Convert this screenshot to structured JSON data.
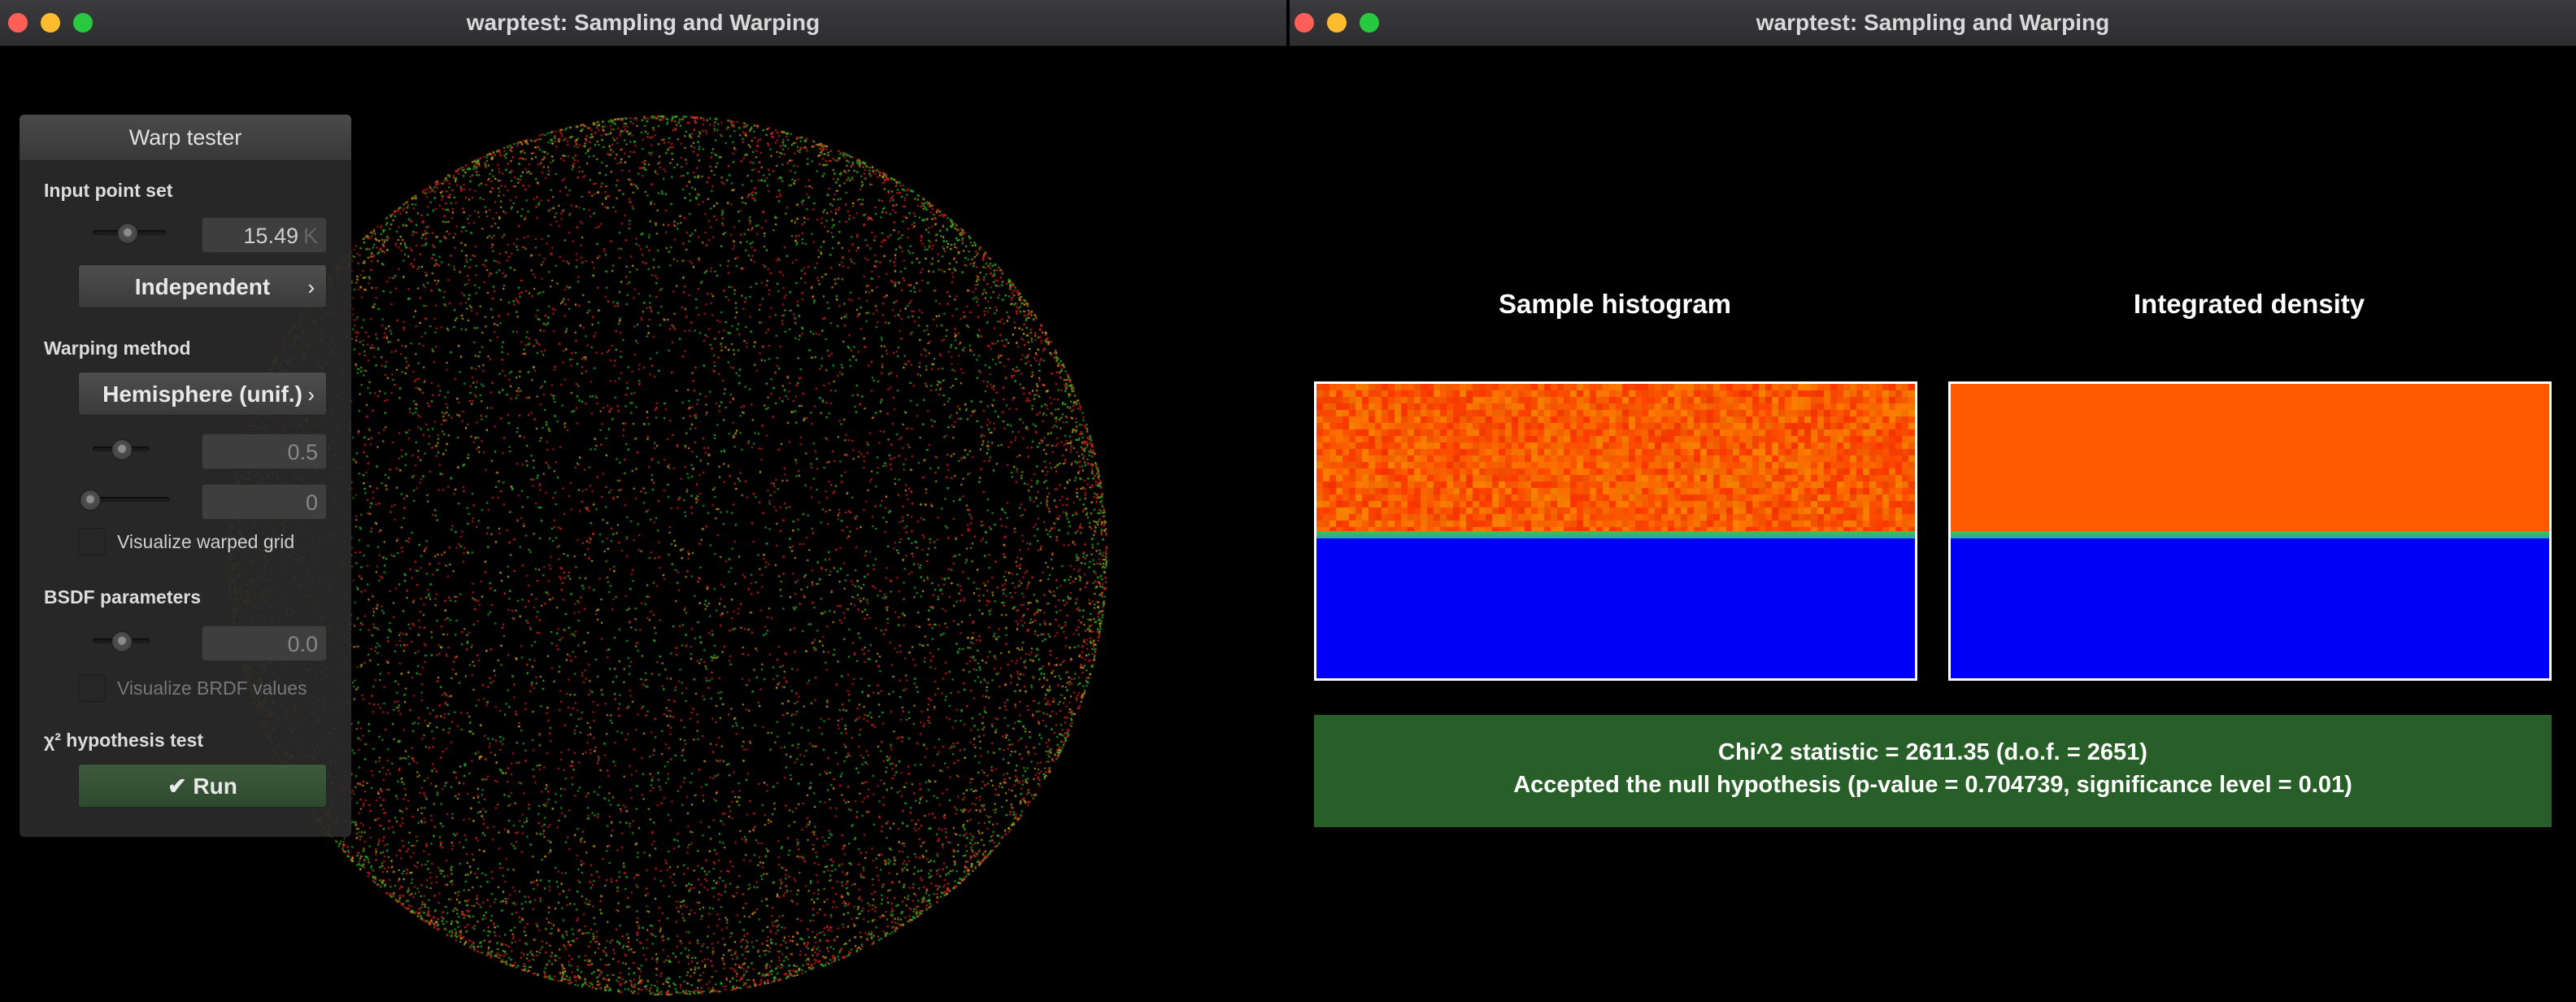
{
  "window_left": {
    "title": "warptest: Sampling and Warping"
  },
  "window_right": {
    "title": "warptest: Sampling and Warping"
  },
  "panel": {
    "header": "Warp tester",
    "input_point_set": {
      "label": "Input point set",
      "count_value": "15.49",
      "count_unit": "K",
      "count_slider_fraction": 0.6,
      "generator_button": "Independent"
    },
    "warping_method": {
      "label": "Warping method",
      "method_button": "Hemisphere (unif.)",
      "param1_value": "0.5",
      "param1_slider_fraction": 0.5,
      "param2_value": "0",
      "param2_slider_fraction": 0.0,
      "visualize_grid_label": "Visualize warped grid"
    },
    "bsdf": {
      "label": "BSDF parameters",
      "value": "0.0",
      "slider_fraction": 0.5,
      "visualize_brdf_label": "Visualize BRDF values"
    },
    "hypothesis": {
      "label": "χ² hypothesis test",
      "run_button": "Run",
      "run_icon": "checkmark-icon"
    }
  },
  "histogram": {
    "sample_title": "Sample histogram",
    "density_title": "Integrated density",
    "colors": {
      "upper": "#ff5a00",
      "lower": "#0000fa",
      "band": "#3cc83c"
    }
  },
  "result": {
    "line1": "Chi^2 statistic = 2611.35 (d.o.f. = 2651)",
    "line2": "Accepted the null hypothesis (p-value = 0.704739, significance level = 0.01)",
    "color": "#285f28"
  }
}
